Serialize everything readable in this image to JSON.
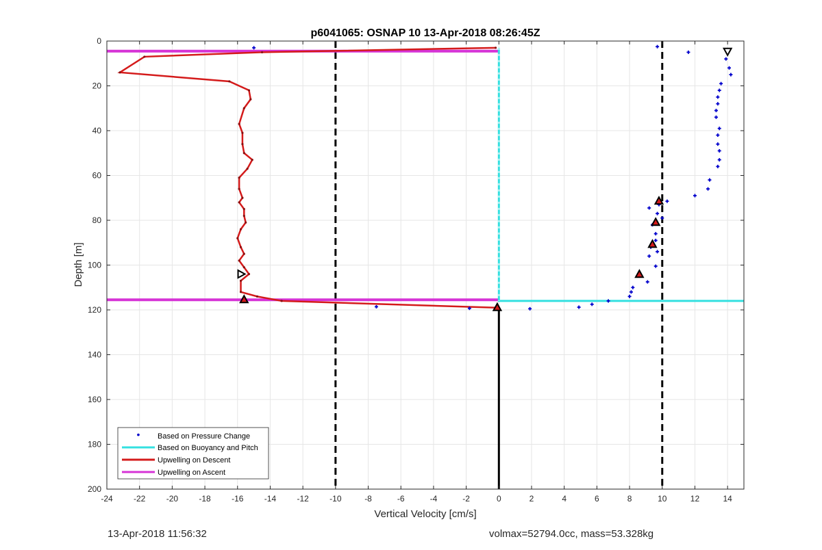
{
  "footer": {
    "timestamp": "13-Apr-2018 11:56:32",
    "info": "volmax=52794.0cc, mass=53.328kg"
  },
  "chart_data": {
    "type": "line",
    "title": "p6041065: OSNAP 10 13-Apr-2018 08:26:45Z",
    "xlabel": "Vertical Velocity [cm/s]",
    "ylabel": "Depth [m]",
    "xlim": [
      -24,
      15
    ],
    "ylim": [
      0,
      200
    ],
    "y_reversed": true,
    "grid": true,
    "xticks": [
      -24,
      -22,
      -20,
      -18,
      -16,
      -14,
      -12,
      -10,
      -8,
      -6,
      -4,
      -2,
      0,
      2,
      4,
      6,
      8,
      10,
      12,
      14
    ],
    "yticks": [
      0,
      20,
      40,
      60,
      80,
      100,
      120,
      140,
      160,
      180,
      200
    ],
    "legend_position": "bottom-left",
    "colors": {
      "pressure": "#0000cc",
      "buoyancy": "#33e0e0",
      "descent": "#d41a1a",
      "ascent": "#d633d6"
    },
    "series": [
      {
        "name": "Based on Pressure Change",
        "style": "points",
        "points": [
          [
            -15,
            3
          ],
          [
            9.7,
            2.5
          ],
          [
            11.6,
            5
          ],
          [
            13.9,
            8
          ],
          [
            14.1,
            12
          ],
          [
            14.2,
            15
          ],
          [
            13.6,
            19
          ],
          [
            13.5,
            22
          ],
          [
            13.4,
            25
          ],
          [
            13.4,
            28
          ],
          [
            13.3,
            31
          ],
          [
            13.3,
            34
          ],
          [
            13.5,
            39
          ],
          [
            13.4,
            42
          ],
          [
            13.4,
            46
          ],
          [
            13.5,
            49
          ],
          [
            13.5,
            53
          ],
          [
            13.4,
            56
          ],
          [
            12.9,
            62
          ],
          [
            12.8,
            66
          ],
          [
            12,
            69
          ],
          [
            10.3,
            71.5
          ],
          [
            9.8,
            73
          ],
          [
            9.2,
            74.5
          ],
          [
            9.7,
            77
          ],
          [
            10,
            79
          ],
          [
            9.4,
            82
          ],
          [
            9.6,
            86
          ],
          [
            9.6,
            89
          ],
          [
            9.3,
            92
          ],
          [
            9.7,
            94
          ],
          [
            9.2,
            96
          ],
          [
            9.6,
            100.5
          ],
          [
            8.6,
            104.5
          ],
          [
            9.1,
            107.5
          ],
          [
            8.2,
            110
          ],
          [
            8.1,
            112
          ],
          [
            8,
            114
          ],
          [
            6.7,
            116
          ],
          [
            5.7,
            117.5
          ],
          [
            4.9,
            118.8
          ],
          [
            1.9,
            119.5
          ],
          [
            -1.8,
            119.3
          ],
          [
            -7.5,
            118.6
          ],
          [
            -0.1,
            119.3
          ]
        ]
      },
      {
        "name": "Based on Buoyancy and Pitch",
        "style": "line",
        "points": [
          [
            0,
            3
          ],
          [
            0,
            116
          ],
          [
            15,
            116
          ]
        ]
      },
      {
        "name": "Upwelling on Descent",
        "style": "line",
        "points": [
          [
            -0.2,
            3
          ],
          [
            -14.5,
            5
          ],
          [
            -21.7,
            7
          ],
          [
            -23.2,
            14
          ],
          [
            -16.5,
            18
          ],
          [
            -15.3,
            22
          ],
          [
            -15.2,
            26
          ],
          [
            -15.6,
            30
          ],
          [
            -15.9,
            37
          ],
          [
            -15.7,
            41
          ],
          [
            -15.7,
            46
          ],
          [
            -15.6,
            50
          ],
          [
            -15.1,
            53
          ],
          [
            -15.4,
            57
          ],
          [
            -15.9,
            61
          ],
          [
            -15.9,
            66
          ],
          [
            -15.7,
            70
          ],
          [
            -15.9,
            72
          ],
          [
            -15.6,
            75
          ],
          [
            -15.6,
            78
          ],
          [
            -15.5,
            81
          ],
          [
            -15.8,
            84
          ],
          [
            -16,
            88
          ],
          [
            -15.8,
            92
          ],
          [
            -15.6,
            95
          ],
          [
            -15.9,
            98
          ],
          [
            -15.6,
            101
          ],
          [
            -15.3,
            104
          ],
          [
            -15.8,
            107
          ],
          [
            -15.8,
            112
          ],
          [
            -14.8,
            114
          ],
          [
            -13.3,
            116
          ],
          [
            -0.2,
            119
          ]
        ]
      },
      {
        "name": "Upwelling on Ascent",
        "style": "line",
        "segments": [
          [
            [
              -24,
              4.5
            ],
            [
              0,
              4.5
            ]
          ],
          [
            [
              -24,
              115.5
            ],
            [
              0,
              115.5
            ]
          ]
        ]
      }
    ],
    "markers": {
      "up_triangles": [
        [
          9.8,
          71.5
        ],
        [
          9.6,
          81
        ],
        [
          9.4,
          90.8
        ],
        [
          8.6,
          104.2
        ],
        [
          -15.6,
          115.5
        ],
        [
          -0.1,
          119
        ]
      ],
      "down_triangles": [
        [
          14,
          4.5
        ]
      ],
      "right_triangles": [
        [
          -15.8,
          104
        ]
      ]
    },
    "reference_lines": {
      "dashed_x": [
        -10,
        10
      ],
      "solid_x_segment": [
        0,
        119,
        200
      ]
    }
  }
}
